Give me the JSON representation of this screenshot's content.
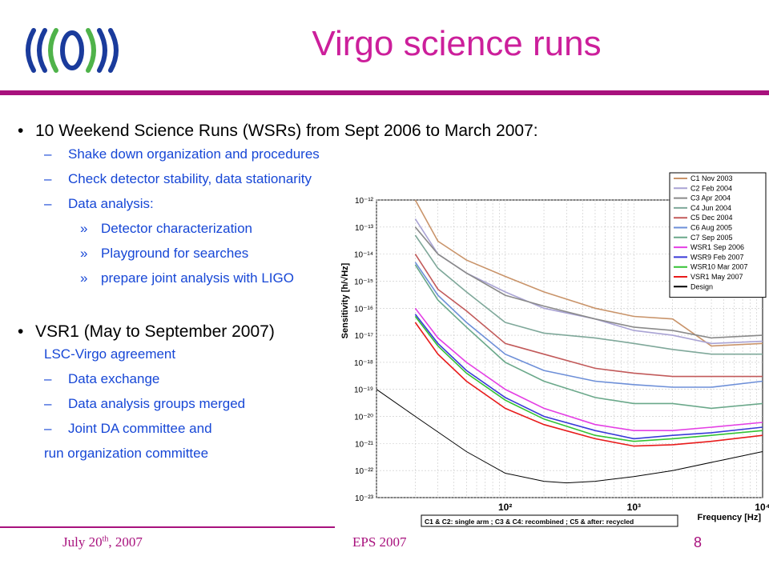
{
  "slide": {
    "title": "Virgo science runs",
    "bullets": [
      {
        "text": "10 Weekend Science Runs (WSRs) from Sept 2006 to March 2007:"
      },
      {
        "text": "VSR1 (May to September 2007)"
      }
    ],
    "sub_items_1": [
      "Shake down organization and procedures",
      "Check detector stability, data stationarity",
      "Data analysis:"
    ],
    "sub_sub_items_1": [
      "Detector characterization",
      "Playground for searches",
      "prepare joint analysis with LIGO"
    ],
    "plain_line_1": "LSC-Virgo agreement",
    "sub_items_2": [
      "Data exchange",
      "Data analysis groups merged",
      "Joint DA committee and"
    ],
    "plain_line_2": "run organization committee",
    "footer": {
      "date_prefix": "July 20",
      "date_sup": "th",
      "date_suffix": ", 2007",
      "center": "EPS 2007",
      "page": "8"
    },
    "bullet_glyph": "•",
    "dash_glyph": "–",
    "raquo_glyph": "»"
  },
  "chart_data": {
    "type": "line",
    "ylabel": "Sensitivity [h/√Hz]",
    "xlabel": "Frequency [Hz]",
    "x_scale": "log",
    "y_scale": "log",
    "xlim": [
      10,
      10000
    ],
    "ylim": [
      1e-23,
      1e-12
    ],
    "y_ticks": [
      "10⁻¹²",
      "10⁻¹³",
      "10⁻¹⁴",
      "10⁻¹⁵",
      "10⁻¹⁶",
      "10⁻¹⁷",
      "10⁻¹⁸",
      "10⁻¹⁹",
      "10⁻²⁰",
      "10⁻²¹",
      "10⁻²²",
      "10⁻²³"
    ],
    "x_ticks": [
      "10²",
      "10³",
      "10⁴"
    ],
    "x_tick_values": [
      100,
      1000,
      10000
    ],
    "grid": true,
    "legend_position": "top-right",
    "caption": "C1 & C2: single arm ; C3 & C4: recombined ; C5 & after: recycled",
    "series": [
      {
        "name": "C1 Nov 2003",
        "color": "#c9946a",
        "x": [
          20,
          30,
          50,
          100,
          200,
          500,
          1000,
          2000,
          4000,
          10000
        ],
        "y": [
          1e-12,
          3e-14,
          6e-15,
          1.5e-15,
          4e-16,
          1e-16,
          5e-17,
          4e-17,
          4e-18,
          5e-18
        ]
      },
      {
        "name": "C2 Feb 2004",
        "color": "#a9a3d4",
        "x": [
          20,
          30,
          50,
          100,
          200,
          500,
          1000,
          2000,
          4000,
          10000
        ],
        "y": [
          2e-13,
          1e-14,
          2e-15,
          4e-16,
          1e-16,
          4e-17,
          1.5e-17,
          1e-17,
          5e-18,
          6e-18
        ]
      },
      {
        "name": "C3 Apr 2004",
        "color": "#8a8a8a",
        "x": [
          20,
          30,
          50,
          100,
          200,
          500,
          1000,
          2000,
          4000,
          10000
        ],
        "y": [
          1e-13,
          1e-14,
          2e-15,
          3e-16,
          1.2e-16,
          4e-17,
          2e-17,
          1.5e-17,
          8e-18,
          1e-17
        ]
      },
      {
        "name": "C4 Jun 2004",
        "color": "#7fa89a",
        "x": [
          20,
          30,
          50,
          100,
          200,
          500,
          1000,
          2000,
          4000,
          10000
        ],
        "y": [
          5e-14,
          3e-15,
          4e-16,
          3e-17,
          1.2e-17,
          8e-18,
          5e-18,
          3e-18,
          2e-18,
          2e-18
        ]
      },
      {
        "name": "C5 Dec 2004",
        "color": "#c25a5a",
        "x": [
          20,
          30,
          50,
          100,
          200,
          500,
          1000,
          2000,
          4000,
          10000
        ],
        "y": [
          1e-14,
          5e-16,
          8e-17,
          5e-18,
          2e-18,
          6e-19,
          4e-19,
          3e-19,
          3e-19,
          3e-19
        ]
      },
      {
        "name": "C6 Aug 2005",
        "color": "#6d8fd8",
        "x": [
          20,
          30,
          50,
          100,
          200,
          500,
          1000,
          2000,
          4000,
          10000
        ],
        "y": [
          5e-15,
          3e-16,
          3e-17,
          2e-18,
          5e-19,
          2e-19,
          1.5e-19,
          1.2e-19,
          1.2e-19,
          2e-19
        ]
      },
      {
        "name": "C7 Sep 2005",
        "color": "#6aa88a",
        "x": [
          20,
          30,
          50,
          100,
          200,
          500,
          1000,
          2000,
          4000,
          10000
        ],
        "y": [
          4e-15,
          2e-16,
          2e-17,
          1e-18,
          2e-19,
          5e-20,
          3e-20,
          3e-20,
          2e-20,
          3e-20
        ]
      },
      {
        "name": "WSR1 Sep 2006",
        "color": "#e43fe4",
        "x": [
          20,
          30,
          50,
          100,
          200,
          500,
          1000,
          2000,
          4000,
          10000
        ],
        "y": [
          1e-16,
          8e-18,
          1e-18,
          1e-19,
          2e-20,
          5e-21,
          3e-21,
          3e-21,
          4e-21,
          6e-21
        ]
      },
      {
        "name": "WSR9 Feb 2007",
        "color": "#3a3ad8",
        "x": [
          20,
          30,
          50,
          100,
          200,
          500,
          1000,
          2000,
          4000,
          10000
        ],
        "y": [
          6e-17,
          5e-18,
          5e-19,
          5e-20,
          1e-20,
          3e-21,
          1.5e-21,
          2e-21,
          2.5e-21,
          4e-21
        ]
      },
      {
        "name": "WSR10 Mar 2007",
        "color": "#33c233",
        "x": [
          20,
          30,
          50,
          100,
          200,
          500,
          1000,
          2000,
          4000,
          10000
        ],
        "y": [
          5e-17,
          4e-18,
          4e-19,
          4e-20,
          8e-21,
          2e-21,
          1.2e-21,
          1.5e-21,
          2e-21,
          3e-21
        ]
      },
      {
        "name": "VSR1 May 2007",
        "color": "#e81b1b",
        "x": [
          20,
          30,
          50,
          100,
          200,
          500,
          1000,
          2000,
          4000,
          10000
        ],
        "y": [
          3e-17,
          2e-18,
          2e-19,
          2e-20,
          5e-21,
          1.5e-21,
          8e-22,
          9e-22,
          1.2e-21,
          2e-21
        ]
      },
      {
        "name": "Design",
        "color": "#000000",
        "x": [
          10,
          20,
          50,
          100,
          200,
          300,
          500,
          1000,
          2000,
          5000,
          10000
        ],
        "y": [
          1e-19,
          1e-20,
          5e-22,
          8e-23,
          4e-23,
          3.5e-23,
          4e-23,
          6e-23,
          1e-22,
          2.5e-22,
          5e-22
        ]
      }
    ]
  }
}
